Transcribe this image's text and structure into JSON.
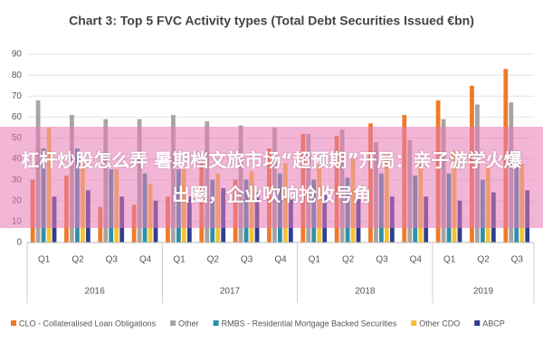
{
  "chart_data": {
    "type": "bar",
    "title": "Chart 3: Top 5 FVC Activity types (Total Debt Securities Issued €bn)",
    "categories": [
      "Q1",
      "Q2",
      "Q3",
      "Q4",
      "Q1",
      "Q2",
      "Q3",
      "Q4",
      "Q1",
      "Q2",
      "Q3",
      "Q4",
      "Q1",
      "Q2",
      "Q3"
    ],
    "groups": [
      "2016",
      "2017",
      "2018",
      "2019"
    ],
    "series": [
      {
        "name": "CLO - Collateralised Loan Obligations",
        "color": "#f07a28",
        "values": [
          30,
          32,
          17,
          18,
          22,
          38,
          30,
          45,
          52,
          51,
          57,
          61,
          68,
          75,
          83
        ]
      },
      {
        "name": "Other",
        "color": "#a5a5a5",
        "values": [
          68,
          61,
          59,
          59,
          61,
          58,
          56,
          55,
          52,
          54,
          48,
          49,
          59,
          66,
          67
        ]
      },
      {
        "name": "RMBS - Residential Mortgage Backed Securities",
        "color": "#2e8fa8",
        "values": [
          45,
          45,
          35,
          33,
          35,
          30,
          30,
          33,
          30,
          31,
          33,
          32,
          33,
          30,
          36
        ]
      },
      {
        "name": "Other CDO",
        "color": "#f5c230",
        "values": [
          55,
          38,
          35,
          28,
          35,
          33,
          34,
          38,
          37,
          40,
          42,
          40,
          44,
          37,
          38
        ]
      },
      {
        "name": "ABCP",
        "color": "#2f3f8f",
        "values": [
          22,
          25,
          22,
          20,
          22,
          26,
          24,
          22,
          23,
          21,
          22,
          22,
          20,
          24,
          25
        ]
      }
    ],
    "ylim": [
      0,
      90
    ],
    "yticks": [
      0,
      10,
      20,
      30,
      40,
      50,
      60,
      70,
      80,
      90
    ],
    "grid": true,
    "legend": "bottom"
  },
  "overlay": {
    "text": "杠杆炒股怎么弄 暑期档文旅市场“超预期”开局：亲子游学火爆出圈，企业吹响抢收号角"
  }
}
